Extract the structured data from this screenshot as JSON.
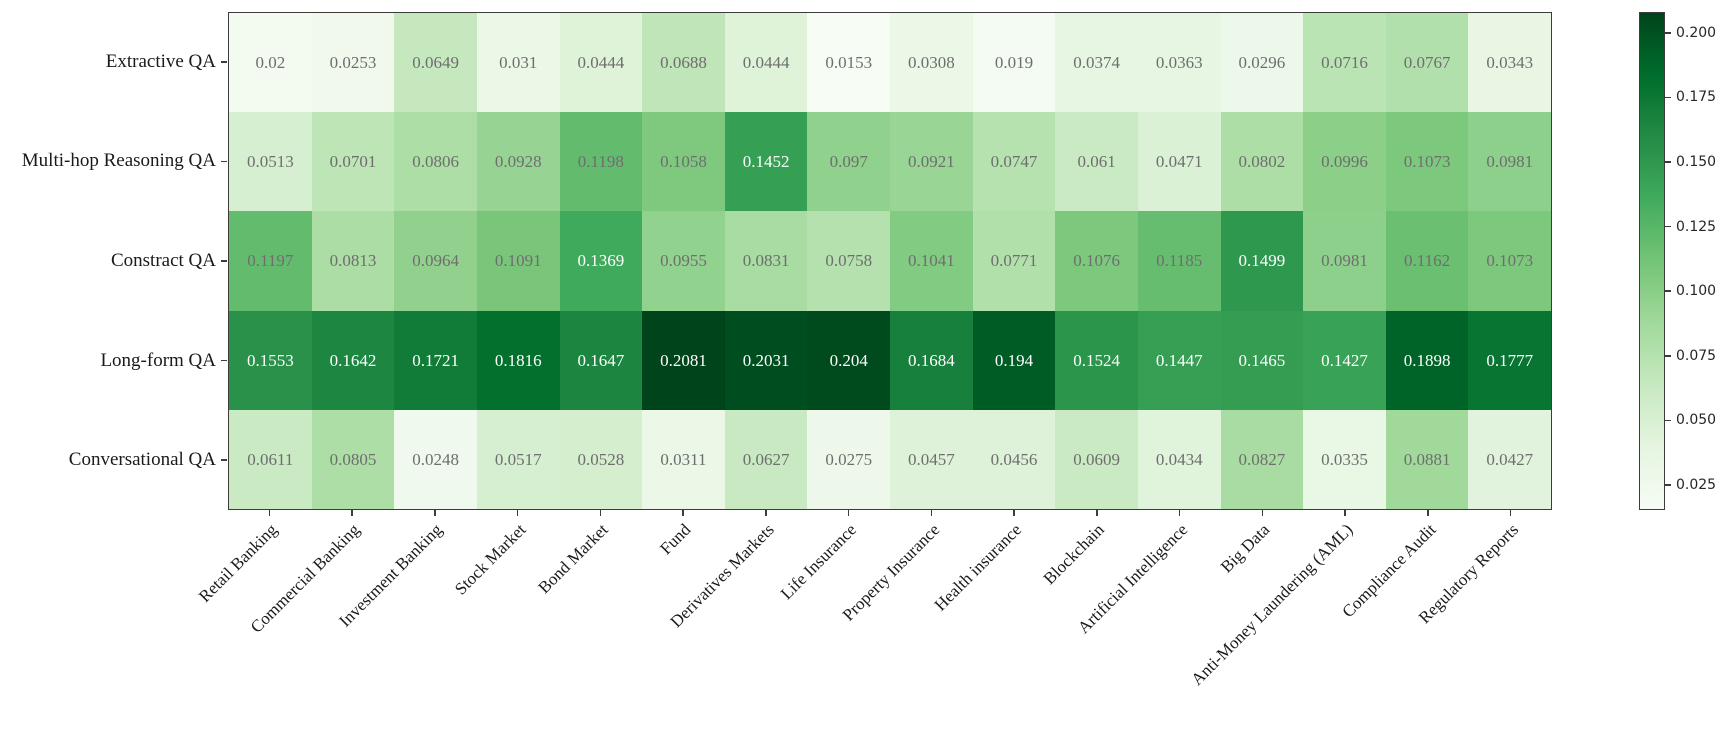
{
  "chart_data": {
    "type": "heatmap",
    "rows": [
      "Extractive QA",
      "Multi-hop Reasoning QA",
      "Constract QA",
      "Long-form QA",
      "Conversational QA"
    ],
    "columns": [
      "Retail Banking",
      "Commercial Banking",
      "Investment Banking",
      "Stock Market",
      "Bond Market",
      "Fund",
      "Derivatives Markets",
      "Life Insurance",
      "Property Insurance",
      "Health insurance",
      "Blockchain",
      "Artificial Intelligence",
      "Big Data",
      "Anti-Money Laundering (AML)",
      "Compliance Audit",
      "Regulatory Reports"
    ],
    "values": [
      [
        0.02,
        0.0253,
        0.0649,
        0.031,
        0.0444,
        0.0688,
        0.0444,
        0.0153,
        0.0308,
        0.019,
        0.0374,
        0.0363,
        0.0296,
        0.0716,
        0.0767,
        0.0343
      ],
      [
        0.0513,
        0.0701,
        0.0806,
        0.0928,
        0.1198,
        0.1058,
        0.1452,
        0.097,
        0.0921,
        0.0747,
        0.061,
        0.0471,
        0.0802,
        0.0996,
        0.1073,
        0.0981
      ],
      [
        0.1197,
        0.0813,
        0.0964,
        0.1091,
        0.1369,
        0.0955,
        0.0831,
        0.0758,
        0.1041,
        0.0771,
        0.1076,
        0.1185,
        0.1499,
        0.0981,
        0.1162,
        0.1073
      ],
      [
        0.1553,
        0.1642,
        0.1721,
        0.1816,
        0.1647,
        0.2081,
        0.2031,
        0.204,
        0.1684,
        0.194,
        0.1524,
        0.1447,
        0.1465,
        0.1427,
        0.1898,
        0.1777
      ],
      [
        0.0611,
        0.0805,
        0.0248,
        0.0517,
        0.0528,
        0.0311,
        0.0627,
        0.0275,
        0.0457,
        0.0456,
        0.0609,
        0.0434,
        0.0827,
        0.0335,
        0.0881,
        0.0427
      ]
    ],
    "vmin": 0.0153,
    "vmax": 0.2081,
    "annotations_shown": true,
    "grid": false,
    "title": "",
    "xlabel": "",
    "ylabel": "",
    "x_tick_rotation_deg": 45,
    "colormap": {
      "name": "Greens",
      "stops": [
        {
          "pos": 0.0,
          "color": "#f7fcf5"
        },
        {
          "pos": 0.125,
          "color": "#e5f5e0"
        },
        {
          "pos": 0.25,
          "color": "#c7e9c0"
        },
        {
          "pos": 0.375,
          "color": "#a1d99b"
        },
        {
          "pos": 0.5,
          "color": "#74c476"
        },
        {
          "pos": 0.625,
          "color": "#41ab5d"
        },
        {
          "pos": 0.75,
          "color": "#238b45"
        },
        {
          "pos": 0.875,
          "color": "#006d2c"
        },
        {
          "pos": 1.0,
          "color": "#00441b"
        }
      ]
    },
    "annotation_colors": {
      "on_light_cell": "#6e6e6e",
      "on_dark_cell": "#ffffff",
      "white_text_threshold_norm": 0.6
    },
    "colorbar": {
      "position": "right",
      "tick_values": [
        0.2,
        0.175,
        0.15,
        0.125,
        0.1,
        0.075,
        0.05,
        0.025
      ],
      "tick_labels": [
        "0.200",
        "0.175",
        "0.150",
        "0.125",
        "0.100",
        "0.075",
        "0.050",
        "0.025"
      ]
    },
    "axis_color": "#3c3c3c"
  }
}
